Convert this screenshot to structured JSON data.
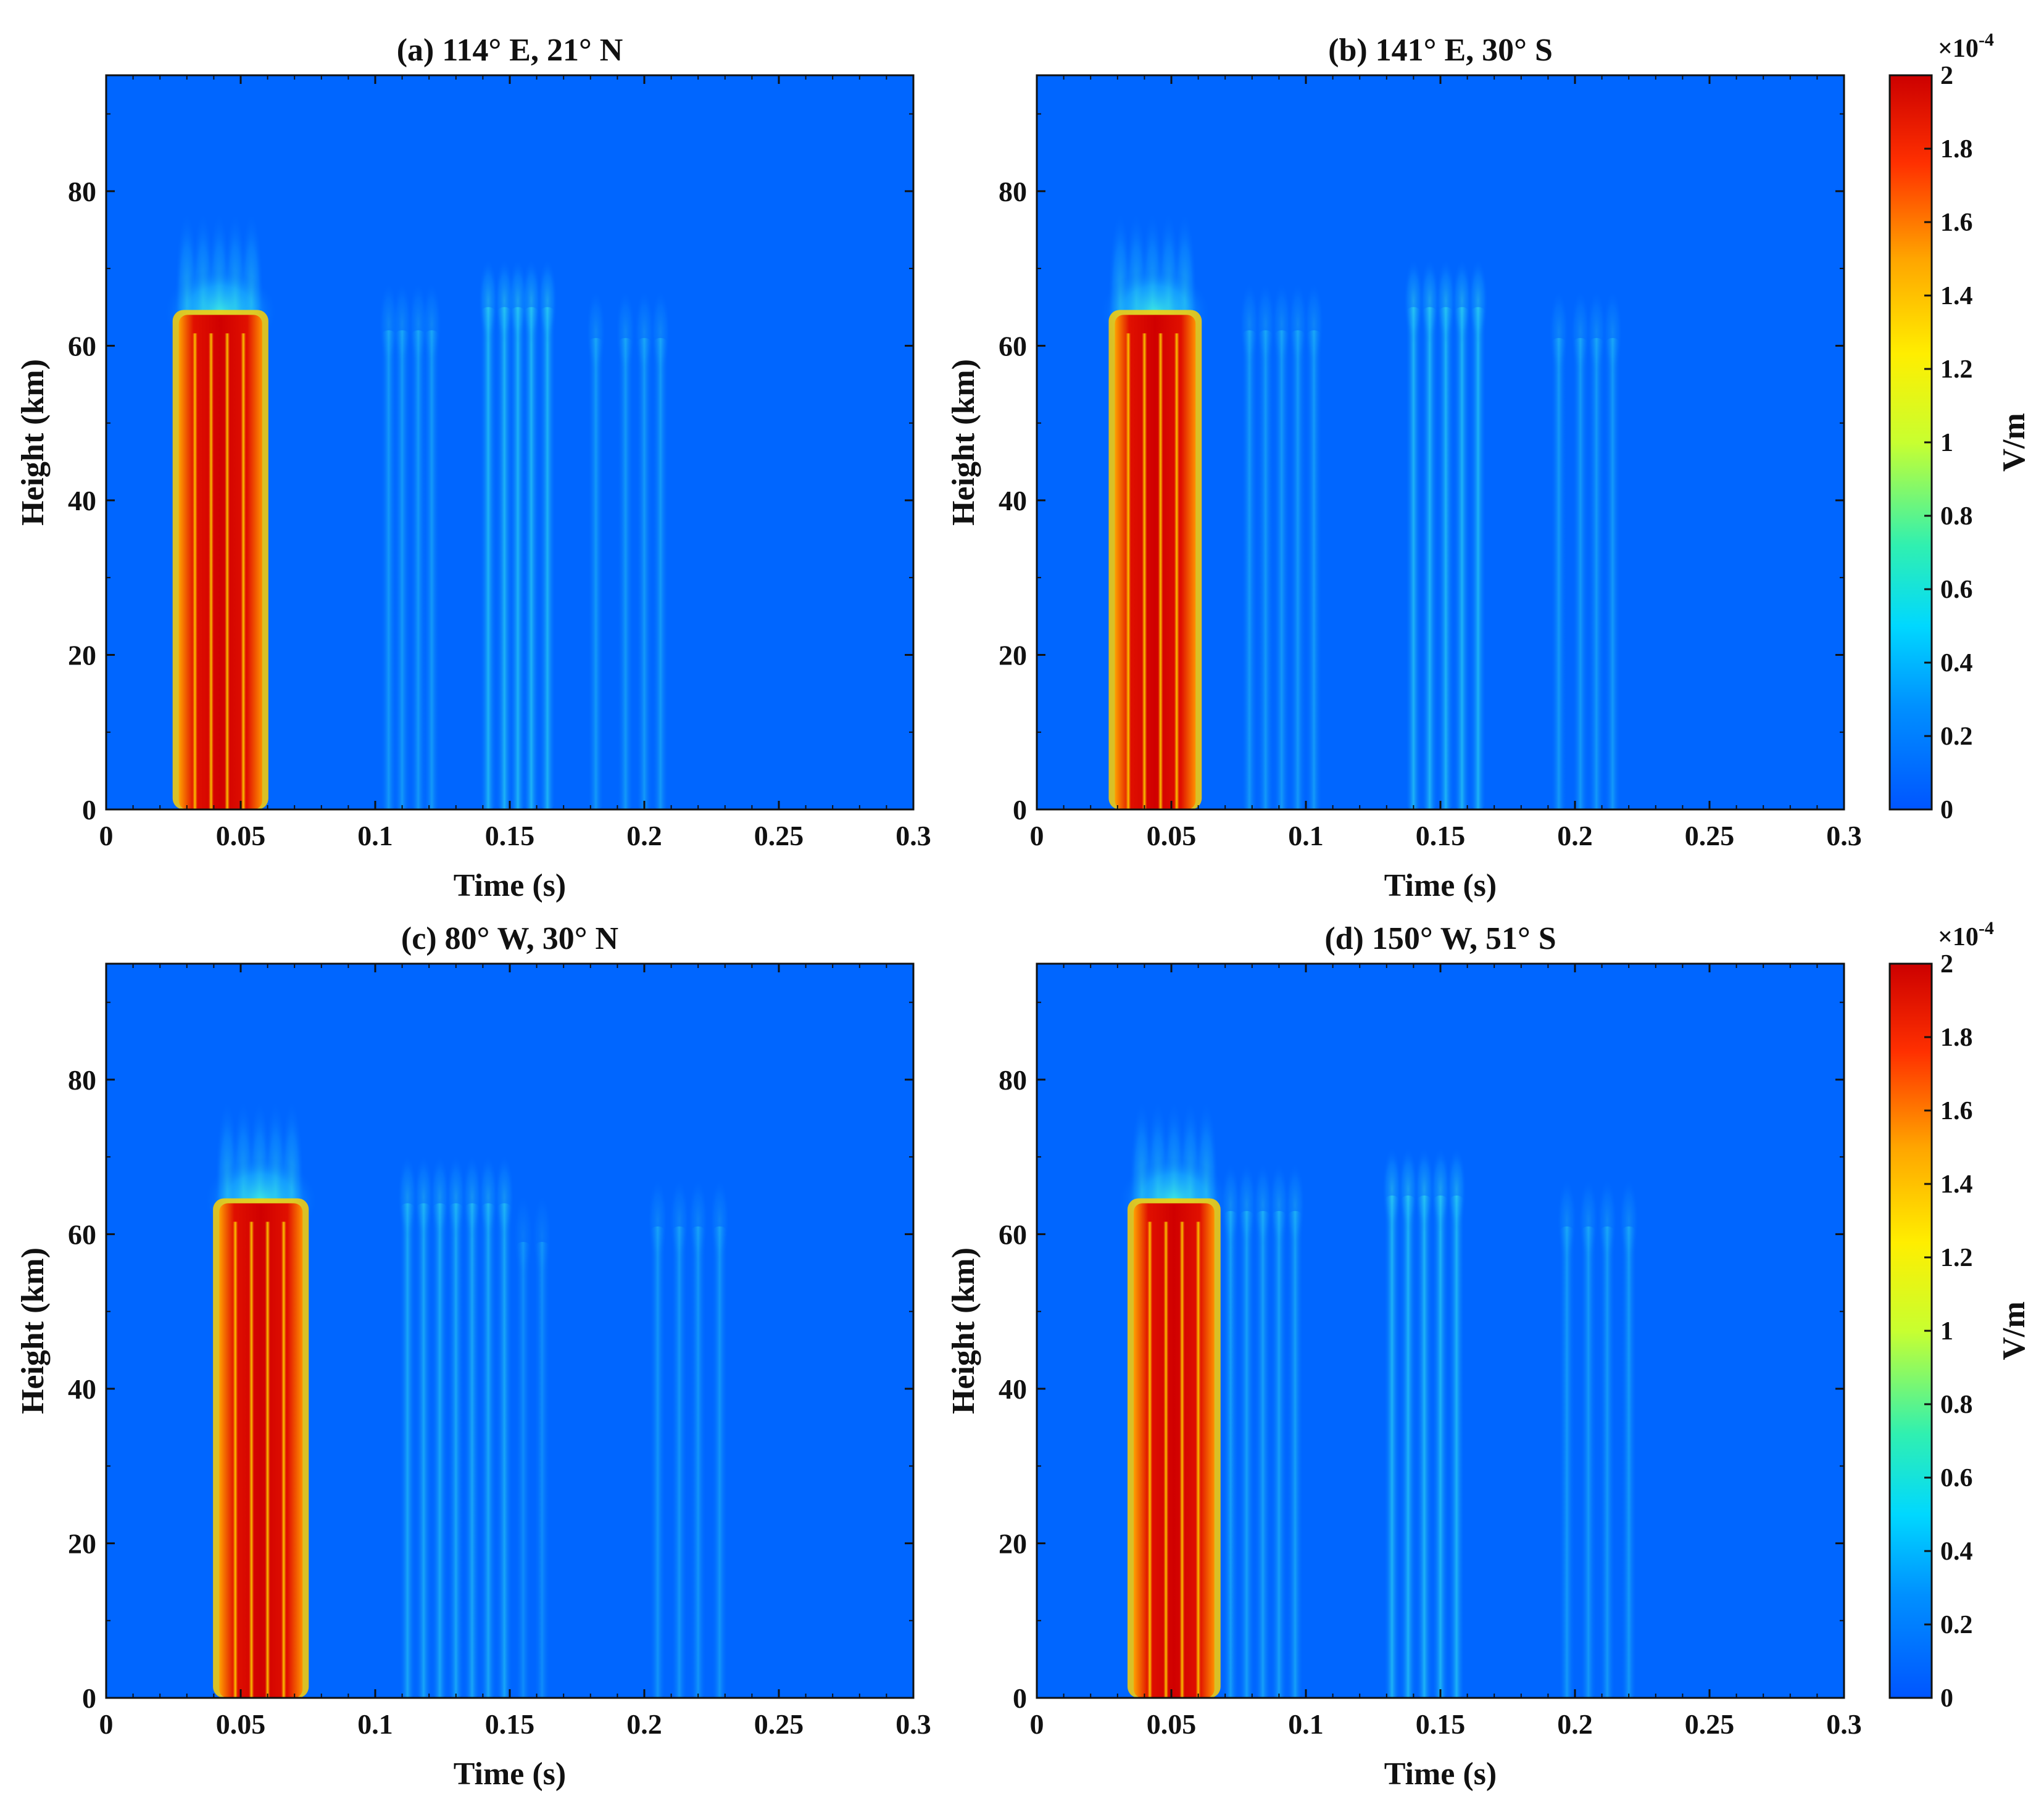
{
  "chart_data": [
    {
      "type": "heatmap",
      "title": "(a) 114° E, 21° N",
      "xlabel": "Time (s)",
      "ylabel": "Height (km)",
      "xlim": [
        0,
        0.3
      ],
      "ylim": [
        0,
        95
      ],
      "xticks": [
        "0",
        "0.05",
        "0.1",
        "0.15",
        "0.2",
        "0.25",
        "0.3"
      ],
      "yticks": [
        "0",
        "20",
        "40",
        "60",
        "80"
      ],
      "strong_pulses": [
        0.03,
        0.036,
        0.042,
        0.048,
        0.054
      ],
      "strong_band": [
        0.027,
        0.058
      ],
      "strong_top_km": 64,
      "weak_groups": [
        {
          "times": [
            0.105,
            0.11,
            0.116,
            0.121
          ],
          "intensity": 0.25,
          "top_km": 62
        },
        {
          "times": [
            0.142,
            0.148,
            0.153,
            0.158,
            0.164
          ],
          "intensity": 0.45,
          "top_km": 65
        },
        {
          "times": [
            0.182,
            0.193,
            0.2,
            0.206
          ],
          "intensity": 0.25,
          "top_km": 61
        }
      ]
    },
    {
      "type": "heatmap",
      "title": "(b) 141° E, 30° S",
      "xlabel": "Time (s)",
      "ylabel": "Height (km)",
      "xlim": [
        0,
        0.3
      ],
      "ylim": [
        0,
        95
      ],
      "xticks": [
        "0",
        "0.05",
        "0.1",
        "0.15",
        "0.2",
        "0.25",
        "0.3"
      ],
      "yticks": [
        "0",
        "20",
        "40",
        "60",
        "80"
      ],
      "strong_pulses": [
        0.031,
        0.037,
        0.043,
        0.049,
        0.055
      ],
      "strong_band": [
        0.029,
        0.059
      ],
      "strong_top_km": 64,
      "weak_groups": [
        {
          "times": [
            0.079,
            0.085,
            0.091,
            0.097,
            0.103
          ],
          "intensity": 0.25,
          "top_km": 62
        },
        {
          "times": [
            0.14,
            0.146,
            0.152,
            0.158,
            0.164
          ],
          "intensity": 0.45,
          "top_km": 65
        },
        {
          "times": [
            0.194,
            0.202,
            0.208,
            0.214
          ],
          "intensity": 0.25,
          "top_km": 61
        }
      ]
    },
    {
      "type": "heatmap",
      "title": "(c) 80° W, 30° N",
      "xlabel": "Time (s)",
      "ylabel": "Height (km)",
      "xlim": [
        0,
        0.3
      ],
      "ylim": [
        0,
        95
      ],
      "xticks": [
        "0",
        "0.05",
        "0.1",
        "0.15",
        "0.2",
        "0.25",
        "0.3"
      ],
      "yticks": [
        "0",
        "20",
        "40",
        "60",
        "80"
      ],
      "strong_pulses": [
        0.045,
        0.051,
        0.057,
        0.063,
        0.069
      ],
      "strong_band": [
        0.042,
        0.073
      ],
      "strong_top_km": 64,
      "weak_groups": [
        {
          "times": [
            0.112,
            0.118,
            0.124,
            0.13,
            0.136,
            0.142,
            0.148
          ],
          "intensity": 0.35,
          "top_km": 64
        },
        {
          "times": [
            0.155,
            0.162
          ],
          "intensity": 0.15,
          "top_km": 59
        },
        {
          "times": [
            0.205,
            0.213,
            0.22,
            0.228
          ],
          "intensity": 0.22,
          "top_km": 61
        }
      ]
    },
    {
      "type": "heatmap",
      "title": "(d) 150° W, 51° S",
      "xlabel": "Time (s)",
      "ylabel": "Height (km)",
      "xlim": [
        0,
        0.3
      ],
      "ylim": [
        0,
        95
      ],
      "xticks": [
        "0",
        "0.05",
        "0.1",
        "0.15",
        "0.2",
        "0.25",
        "0.3"
      ],
      "yticks": [
        "0",
        "20",
        "40",
        "60",
        "80"
      ],
      "strong_pulses": [
        0.039,
        0.045,
        0.051,
        0.057,
        0.063
      ],
      "strong_band": [
        0.036,
        0.066
      ],
      "strong_top_km": 64,
      "weak_groups": [
        {
          "times": [
            0.072,
            0.078,
            0.084,
            0.09,
            0.096
          ],
          "intensity": 0.3,
          "top_km": 63
        },
        {
          "times": [
            0.132,
            0.138,
            0.144,
            0.15,
            0.156
          ],
          "intensity": 0.45,
          "top_km": 65
        },
        {
          "times": [
            0.197,
            0.205,
            0.212,
            0.22
          ],
          "intensity": 0.25,
          "top_km": 61
        }
      ]
    }
  ],
  "colorbar": {
    "label": "V/m",
    "exponent": "×10",
    "exponent_power": "-4",
    "range": [
      0,
      2
    ],
    "ticks": [
      "0",
      "0.2",
      "0.4",
      "0.6",
      "0.8",
      "1",
      "1.2",
      "1.4",
      "1.6",
      "1.8",
      "2"
    ]
  },
  "colors": {
    "background": "#0066ff",
    "strong": "#cc0000"
  }
}
